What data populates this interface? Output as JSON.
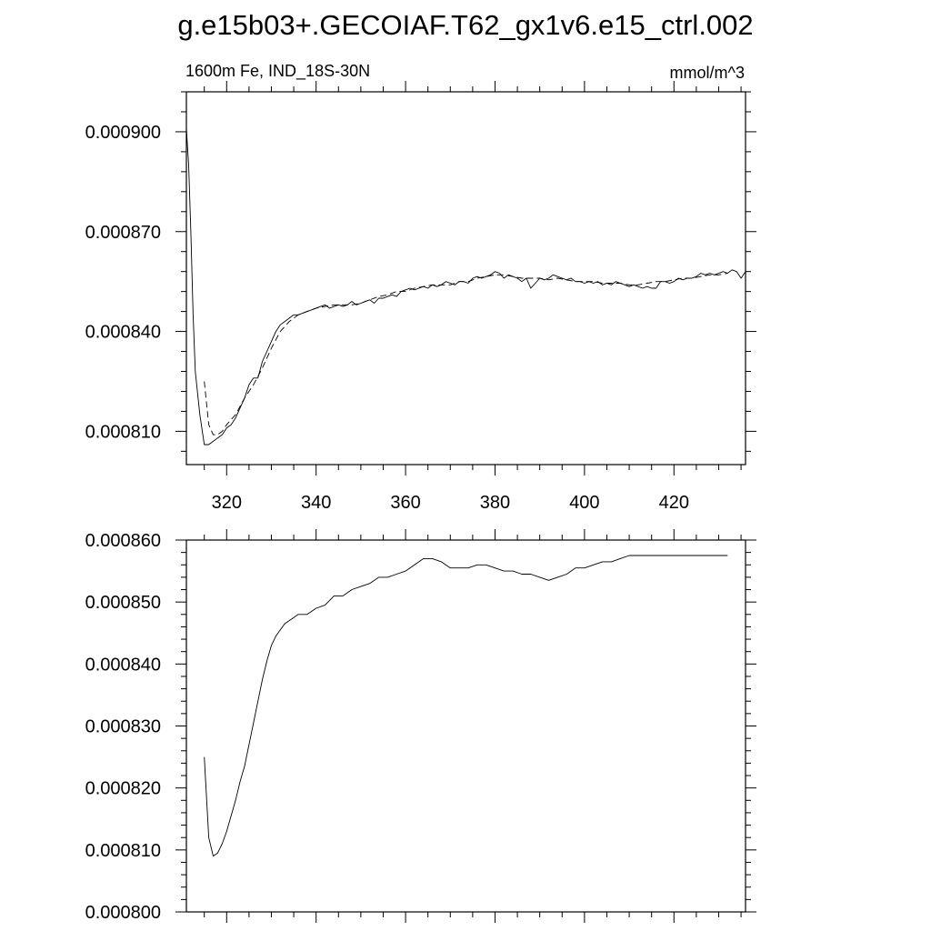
{
  "title": "g.e15b03+.GECOIAF.T62_gx1v6.e15_ctrl.002",
  "chart_data": [
    {
      "type": "line",
      "title": "",
      "left_label": "1600m Fe, IND_18S-30N",
      "right_label": "mmol/m^3",
      "xlim": [
        311,
        436
      ],
      "ylim": [
        0.0008,
        0.000912
      ],
      "xticks": [
        320,
        340,
        360,
        380,
        400,
        420
      ],
      "xtick_labels": [
        "320",
        "340",
        "360",
        "380",
        "400",
        "420"
      ],
      "yticks": [
        0.00081,
        0.00084,
        0.00087,
        0.0009
      ],
      "ytick_labels": [
        "0.000810",
        "0.000840",
        "0.000870",
        "0.000900"
      ],
      "grid": false,
      "series": [
        {
          "style": "solid",
          "x": [
            311,
            311.5,
            312,
            312.5,
            313,
            314,
            315,
            316,
            317,
            318,
            319,
            320,
            321,
            322,
            323,
            324,
            325,
            326,
            327,
            328,
            329,
            330,
            331,
            332,
            333,
            334,
            335,
            336,
            337,
            338,
            339,
            340,
            341,
            342,
            343,
            344,
            345,
            346,
            347,
            348,
            349,
            350,
            351,
            352,
            353,
            354,
            355,
            356,
            357,
            358,
            359,
            360,
            361,
            362,
            363,
            364,
            365,
            366,
            367,
            368,
            369,
            370,
            371,
            372,
            373,
            374,
            375,
            376,
            377,
            378,
            379,
            380,
            381,
            382,
            383,
            384,
            385,
            386,
            387,
            388,
            389,
            390,
            391,
            392,
            393,
            394,
            395,
            396,
            397,
            398,
            399,
            400,
            401,
            402,
            403,
            404,
            405,
            406,
            407,
            408,
            409,
            410,
            411,
            412,
            413,
            414,
            415,
            416,
            417,
            418,
            419,
            420,
            421,
            422,
            423,
            424,
            425,
            426,
            427,
            428,
            429,
            430,
            431,
            432,
            433,
            434,
            435,
            436
          ],
          "y": [
            0.000901,
            0.00089,
            0.00087,
            0.000845,
            0.000828,
            0.000815,
            0.000806,
            0.000806,
            0.000807,
            0.000808,
            0.000809,
            0.000811,
            0.000812,
            0.000814,
            0.000817,
            0.00082,
            0.000824,
            0.000826,
            0.000826,
            0.000831,
            0.000834,
            0.000837,
            0.00084,
            0.000842,
            0.000843,
            0.000844,
            0.000845,
            0.000845,
            0.0008455,
            0.000846,
            0.0008465,
            0.000847,
            0.0008475,
            0.000848,
            0.000847,
            0.0008475,
            0.000848,
            0.0008475,
            0.000848,
            0.000849,
            0.000848,
            0.0008485,
            0.000849,
            0.0008495,
            0.0008485,
            0.00085,
            0.00085,
            0.0008505,
            0.000851,
            0.0008505,
            0.000852,
            0.0008525,
            0.000853,
            0.0008525,
            0.000853,
            0.0008535,
            0.000853,
            0.000854,
            0.0008535,
            0.000854,
            0.000855,
            0.0008545,
            0.000854,
            0.000855,
            0.000855,
            0.0008545,
            0.000856,
            0.0008565,
            0.000856,
            0.0008565,
            0.000857,
            0.000858,
            0.0008575,
            0.000856,
            0.000857,
            0.0008565,
            0.000856,
            0.000855,
            0.000856,
            0.000853,
            0.0008545,
            0.000856,
            0.0008555,
            0.000856,
            0.000857,
            0.0008565,
            0.000856,
            0.0008555,
            0.000856,
            0.000855,
            0.000855,
            0.0008545,
            0.000855,
            0.0008545,
            0.000855,
            0.000854,
            0.0008545,
            0.000854,
            0.000855,
            0.0008545,
            0.000854,
            0.0008535,
            0.000854,
            0.0008535,
            0.000853,
            0.0008535,
            0.000853,
            0.000853,
            0.000855,
            0.000855,
            0.0008545,
            0.000855,
            0.000856,
            0.0008555,
            0.000856,
            0.000856,
            0.0008565,
            0.0008575,
            0.000857,
            0.0008575,
            0.000857,
            0.0008575,
            0.000858,
            0.0008575,
            0.0008585,
            0.000858,
            0.000856,
            0.000858
          ]
        },
        {
          "style": "dashed",
          "x": [
            315,
            316,
            317,
            318,
            319,
            320,
            322,
            324,
            326,
            328,
            330,
            332,
            334,
            336,
            338,
            340,
            342,
            344,
            346,
            348,
            350,
            352,
            354,
            356,
            358,
            360,
            362,
            364,
            366,
            368,
            370,
            372,
            374,
            376,
            378,
            380,
            382,
            384,
            386,
            388,
            390,
            392,
            394,
            396,
            398,
            400,
            402,
            404,
            406,
            408,
            410,
            412,
            414,
            416,
            418,
            420,
            422,
            424,
            426,
            428,
            430,
            432
          ],
          "y": [
            0.000825,
            0.000812,
            0.000809,
            0.000809,
            0.00081,
            0.000812,
            0.000815,
            0.00082,
            0.000824,
            0.000829,
            0.000835,
            0.00084,
            0.000843,
            0.000845,
            0.000846,
            0.000847,
            0.0008475,
            0.000848,
            0.000848,
            0.000848,
            0.0008485,
            0.0008495,
            0.0008505,
            0.000851,
            0.000852,
            0.000852,
            0.000853,
            0.0008535,
            0.000854,
            0.000854,
            0.000854,
            0.000855,
            0.000855,
            0.000856,
            0.0008565,
            0.000857,
            0.000857,
            0.0008565,
            0.000856,
            0.000856,
            0.000856,
            0.0008555,
            0.000856,
            0.0008555,
            0.000855,
            0.000855,
            0.000855,
            0.0008545,
            0.0008545,
            0.0008545,
            0.000854,
            0.000854,
            0.0008545,
            0.000855,
            0.000855,
            0.0008555,
            0.000856,
            0.000856,
            0.0008565,
            0.000857,
            0.000857,
            0.0008575
          ]
        }
      ]
    },
    {
      "type": "line",
      "xlim": [
        311,
        436
      ],
      "ylim": [
        0.0008,
        0.00086
      ],
      "xticks": [
        320,
        340,
        360,
        380,
        400,
        420
      ],
      "yticks": [
        0.0008,
        0.00081,
        0.00082,
        0.00083,
        0.00084,
        0.00085,
        0.00086
      ],
      "ytick_labels": [
        "0.000800",
        "0.000810",
        "0.000820",
        "0.000830",
        "0.000840",
        "0.000850",
        "0.000860"
      ],
      "grid": false,
      "series": [
        {
          "style": "solid",
          "x": [
            315,
            316,
            317,
            318,
            319,
            320,
            321,
            322,
            323,
            324,
            325,
            326,
            327,
            328,
            329,
            330,
            331,
            332,
            333,
            334,
            335,
            336,
            337,
            338,
            339,
            340,
            342,
            344,
            346,
            348,
            350,
            352,
            354,
            356,
            358,
            360,
            362,
            364,
            366,
            368,
            370,
            372,
            374,
            376,
            378,
            380,
            382,
            384,
            386,
            388,
            390,
            392,
            394,
            396,
            398,
            400,
            402,
            404,
            406,
            408,
            410,
            412,
            414,
            416,
            418,
            420,
            422,
            424,
            426,
            428,
            430,
            432
          ],
          "y": [
            0.000825,
            0.000812,
            0.000809,
            0.0008095,
            0.000811,
            0.000813,
            0.0008155,
            0.000818,
            0.000821,
            0.0008235,
            0.000827,
            0.0008305,
            0.000834,
            0.0008375,
            0.0008405,
            0.000843,
            0.0008445,
            0.0008455,
            0.0008465,
            0.000847,
            0.0008475,
            0.000848,
            0.000848,
            0.000848,
            0.0008485,
            0.000849,
            0.0008495,
            0.000851,
            0.000851,
            0.000852,
            0.0008525,
            0.000853,
            0.000854,
            0.000854,
            0.0008545,
            0.000855,
            0.000856,
            0.000857,
            0.000857,
            0.0008565,
            0.0008555,
            0.0008555,
            0.0008555,
            0.000856,
            0.000856,
            0.0008555,
            0.000855,
            0.000855,
            0.0008545,
            0.0008545,
            0.000854,
            0.0008535,
            0.000854,
            0.0008545,
            0.0008555,
            0.0008555,
            0.000856,
            0.0008565,
            0.0008565,
            0.000857,
            0.0008575,
            0.0008575,
            0.0008575,
            0.0008575,
            0.0008575,
            0.0008575,
            0.0008575,
            0.0008575,
            0.0008575,
            0.0008575,
            0.0008575,
            0.0008575
          ]
        }
      ]
    }
  ]
}
